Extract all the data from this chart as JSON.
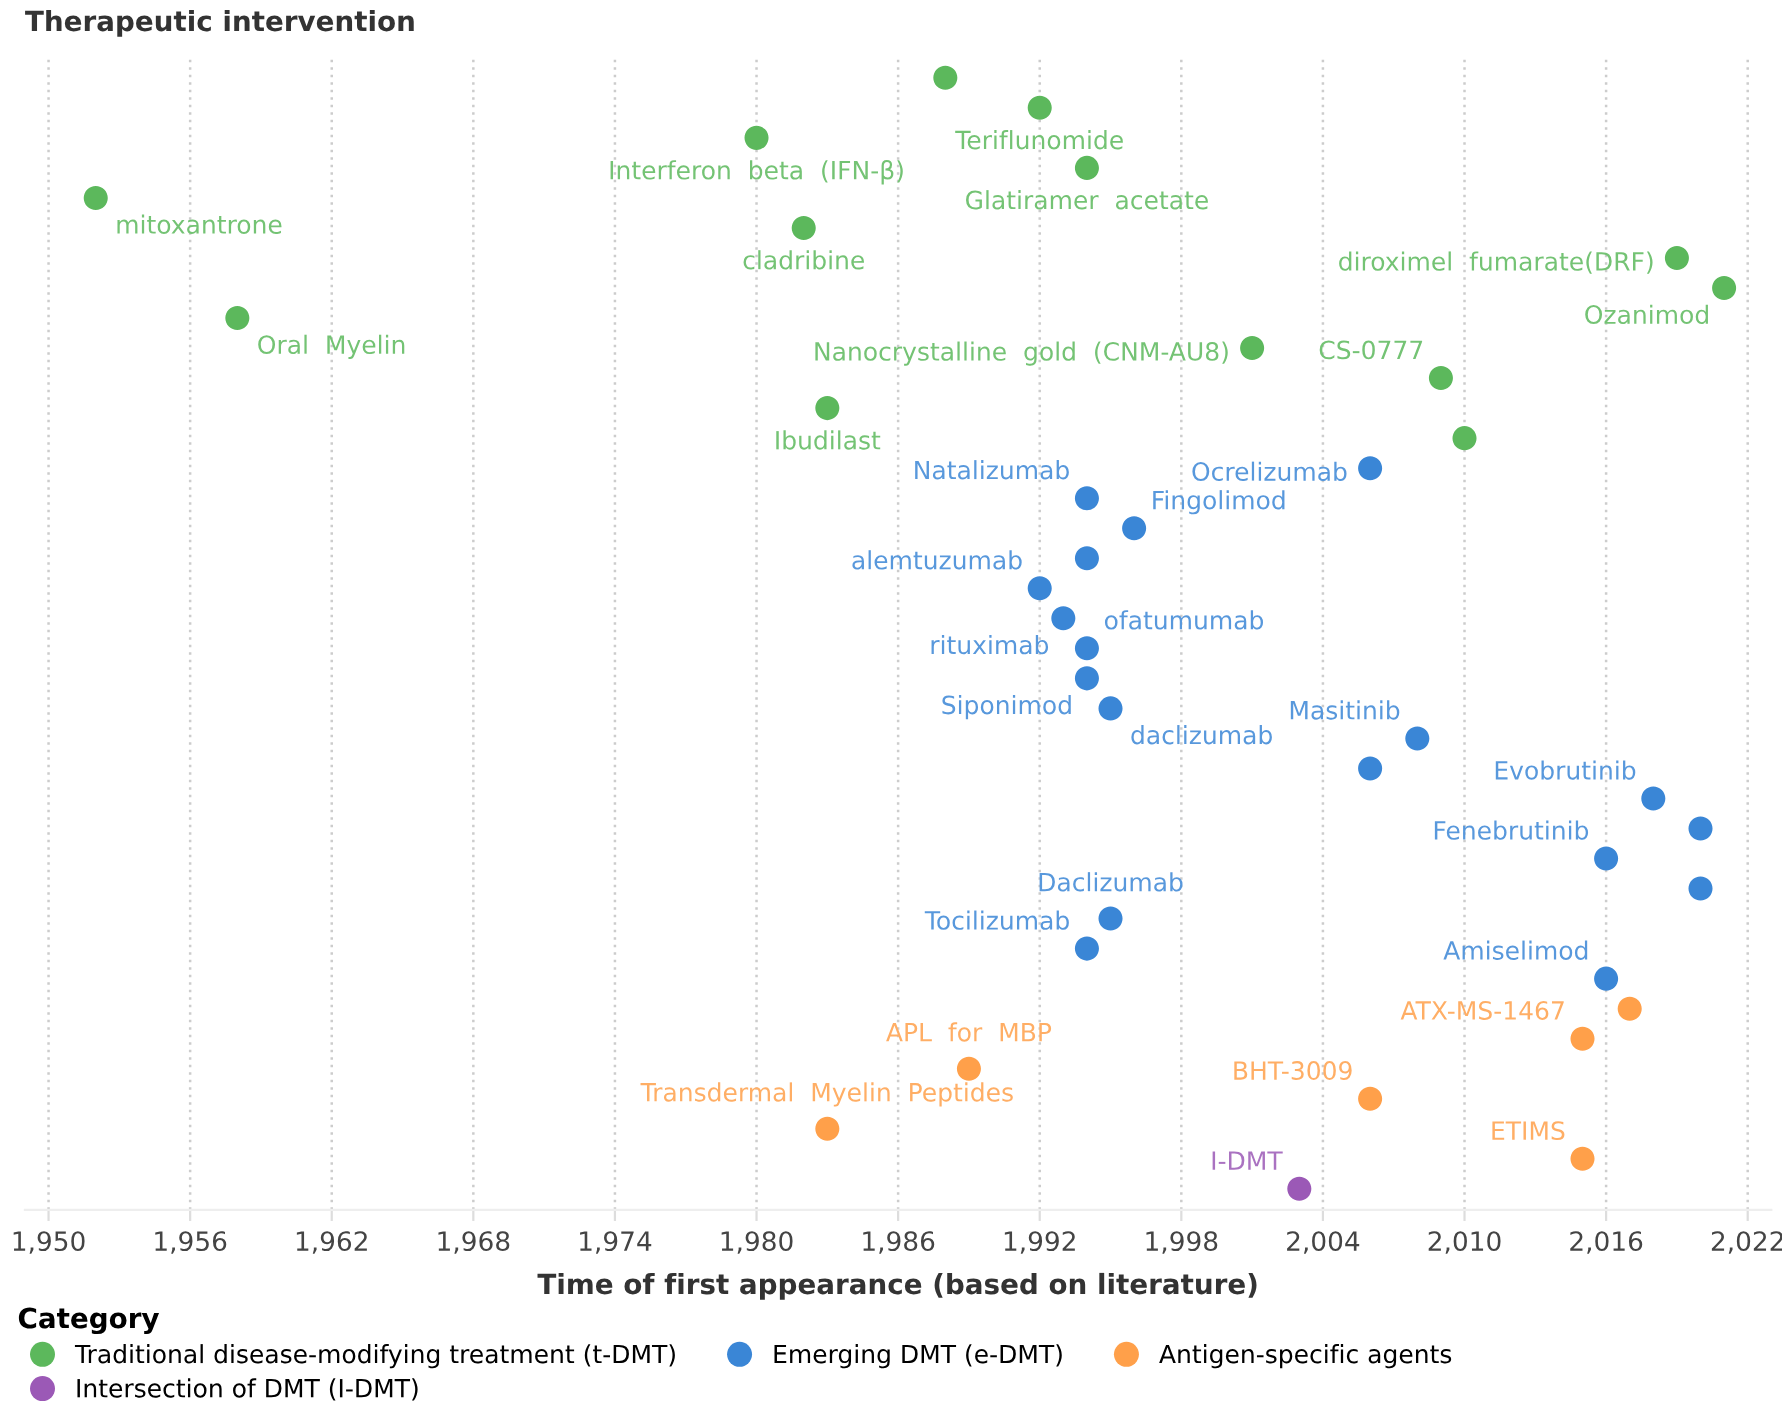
{
  "chart_data": {
    "type": "scatter",
    "orientation": "horizontal",
    "ylabel": "Therapeutic intervention",
    "xlabel": "Time of first appearance (based on literature)",
    "legend_title": "Category",
    "legend": "bottom",
    "grid": "x",
    "tick_labels": "x",
    "marker": "circle",
    "categories": [
      null,
      null,
      null,
      null,
      null,
      null,
      null,
      null,
      null,
      null,
      null,
      null,
      null,
      null,
      null,
      null,
      null,
      null,
      null,
      null,
      null,
      null,
      null,
      null,
      null,
      null,
      null,
      null,
      null,
      null,
      null,
      null,
      null,
      null,
      null,
      null,
      null,
      null
    ],
    "xlim": [
      1949,
      2023
    ],
    "xticks": [
      {
        "value": 1950,
        "label": "1,950"
      },
      {
        "value": 1956,
        "label": "1,956"
      },
      {
        "value": 1962,
        "label": "1,962"
      },
      {
        "value": 1968,
        "label": "1,968"
      },
      {
        "value": 1974,
        "label": "1,974"
      },
      {
        "value": 1980,
        "label": "1,980"
      },
      {
        "value": 1986,
        "label": "1,986"
      },
      {
        "value": 1992,
        "label": "1,992"
      },
      {
        "value": 1998,
        "label": "1,998"
      },
      {
        "value": 2004,
        "label": "2,004"
      },
      {
        "value": 2010,
        "label": "2,010"
      },
      {
        "value": 2016,
        "label": "2,016"
      },
      {
        "value": 2022,
        "label": "2,022"
      }
    ],
    "series": [
      {
        "name": "Traditional disease-modifying treatment (t-DMT)",
        "color": "#5cb85c",
        "values": [
          1988,
          1992,
          1980,
          1994,
          1952,
          1982,
          2019,
          2021,
          1958,
          2001,
          2009,
          1983,
          2010,
          null,
          null,
          null,
          null,
          null,
          null,
          null,
          null,
          null,
          null,
          null,
          null,
          null,
          null,
          null,
          null,
          null,
          null,
          null,
          null,
          null,
          null,
          null,
          null,
          null
        ],
        "value_labels": [
          null,
          "Teriflunomide",
          "Interferon  beta  (IFN-β)",
          "Glatiramer  acetate",
          "mitoxantrone",
          "cladribine",
          "diroximel  fumarate(DRF)",
          "Ozanimod",
          "Oral  Myelin",
          "Nanocrystalline  gold  (CNM-AU8)",
          "CS-0777",
          "Ibudilast",
          null,
          null,
          null,
          null,
          null,
          null,
          null,
          null,
          null,
          null,
          null,
          null,
          null,
          null,
          null,
          null,
          null,
          null,
          null,
          null,
          null,
          null,
          null,
          null,
          null,
          null
        ]
      },
      {
        "name": "Emerging DMT (e-DMT)",
        "color": "#3a86d6",
        "values": [
          null,
          null,
          null,
          null,
          null,
          null,
          null,
          null,
          null,
          null,
          null,
          null,
          null,
          2006,
          1994,
          1996,
          1994,
          1992,
          1993,
          1994,
          1994,
          1995,
          2008,
          2006,
          2018,
          2020,
          2016,
          2020,
          1995,
          1994,
          2016,
          null,
          null,
          null,
          null,
          null,
          null,
          null
        ],
        "value_labels": [
          null,
          null,
          null,
          null,
          null,
          null,
          null,
          null,
          null,
          null,
          null,
          null,
          null,
          "Ocrelizumab",
          "Natalizumab",
          "Fingolimod",
          null,
          "alemtuzumab",
          "rituximab",
          "ofatumumab",
          "Siponimod",
          "daclizumab",
          "Masitinib",
          null,
          "Evobrutinib",
          null,
          "Fenebrutinib",
          null,
          "Daclizumab",
          "Tocilizumab",
          "Amiselimod",
          null,
          null,
          null,
          null,
          null,
          null,
          null
        ]
      },
      {
        "name": "Antigen-specific agents",
        "color": "#ffa04a",
        "values": [
          null,
          null,
          null,
          null,
          null,
          null,
          null,
          null,
          null,
          null,
          null,
          null,
          null,
          null,
          null,
          null,
          null,
          null,
          null,
          null,
          null,
          null,
          null,
          null,
          null,
          null,
          null,
          null,
          null,
          null,
          null,
          2017,
          2015,
          1989,
          2006,
          1983,
          2015,
          null
        ],
        "value_labels": [
          null,
          null,
          null,
          null,
          null,
          null,
          null,
          null,
          null,
          null,
          null,
          null,
          null,
          null,
          null,
          null,
          null,
          null,
          null,
          null,
          null,
          null,
          null,
          null,
          null,
          null,
          null,
          null,
          null,
          null,
          null,
          null,
          "ATX-MS-1467",
          "APL  for  MBP",
          "BHT-3009",
          "Transdermal  Myelin  Peptides",
          "ETIMS",
          null
        ]
      },
      {
        "name": "Intersection of DMT (I-DMT)",
        "color": "#9b59b6",
        "values": [
          null,
          null,
          null,
          null,
          null,
          null,
          null,
          null,
          null,
          null,
          null,
          null,
          null,
          null,
          null,
          null,
          null,
          null,
          null,
          null,
          null,
          null,
          null,
          null,
          null,
          null,
          null,
          null,
          null,
          null,
          null,
          null,
          null,
          null,
          null,
          null,
          null,
          2003
        ],
        "value_labels": [
          null,
          null,
          null,
          null,
          null,
          null,
          null,
          null,
          null,
          null,
          null,
          null,
          null,
          null,
          null,
          null,
          null,
          null,
          null,
          null,
          null,
          null,
          null,
          null,
          null,
          null,
          null,
          null,
          null,
          null,
          null,
          null,
          null,
          null,
          null,
          null,
          null,
          "I-DMT"
        ]
      }
    ]
  }
}
